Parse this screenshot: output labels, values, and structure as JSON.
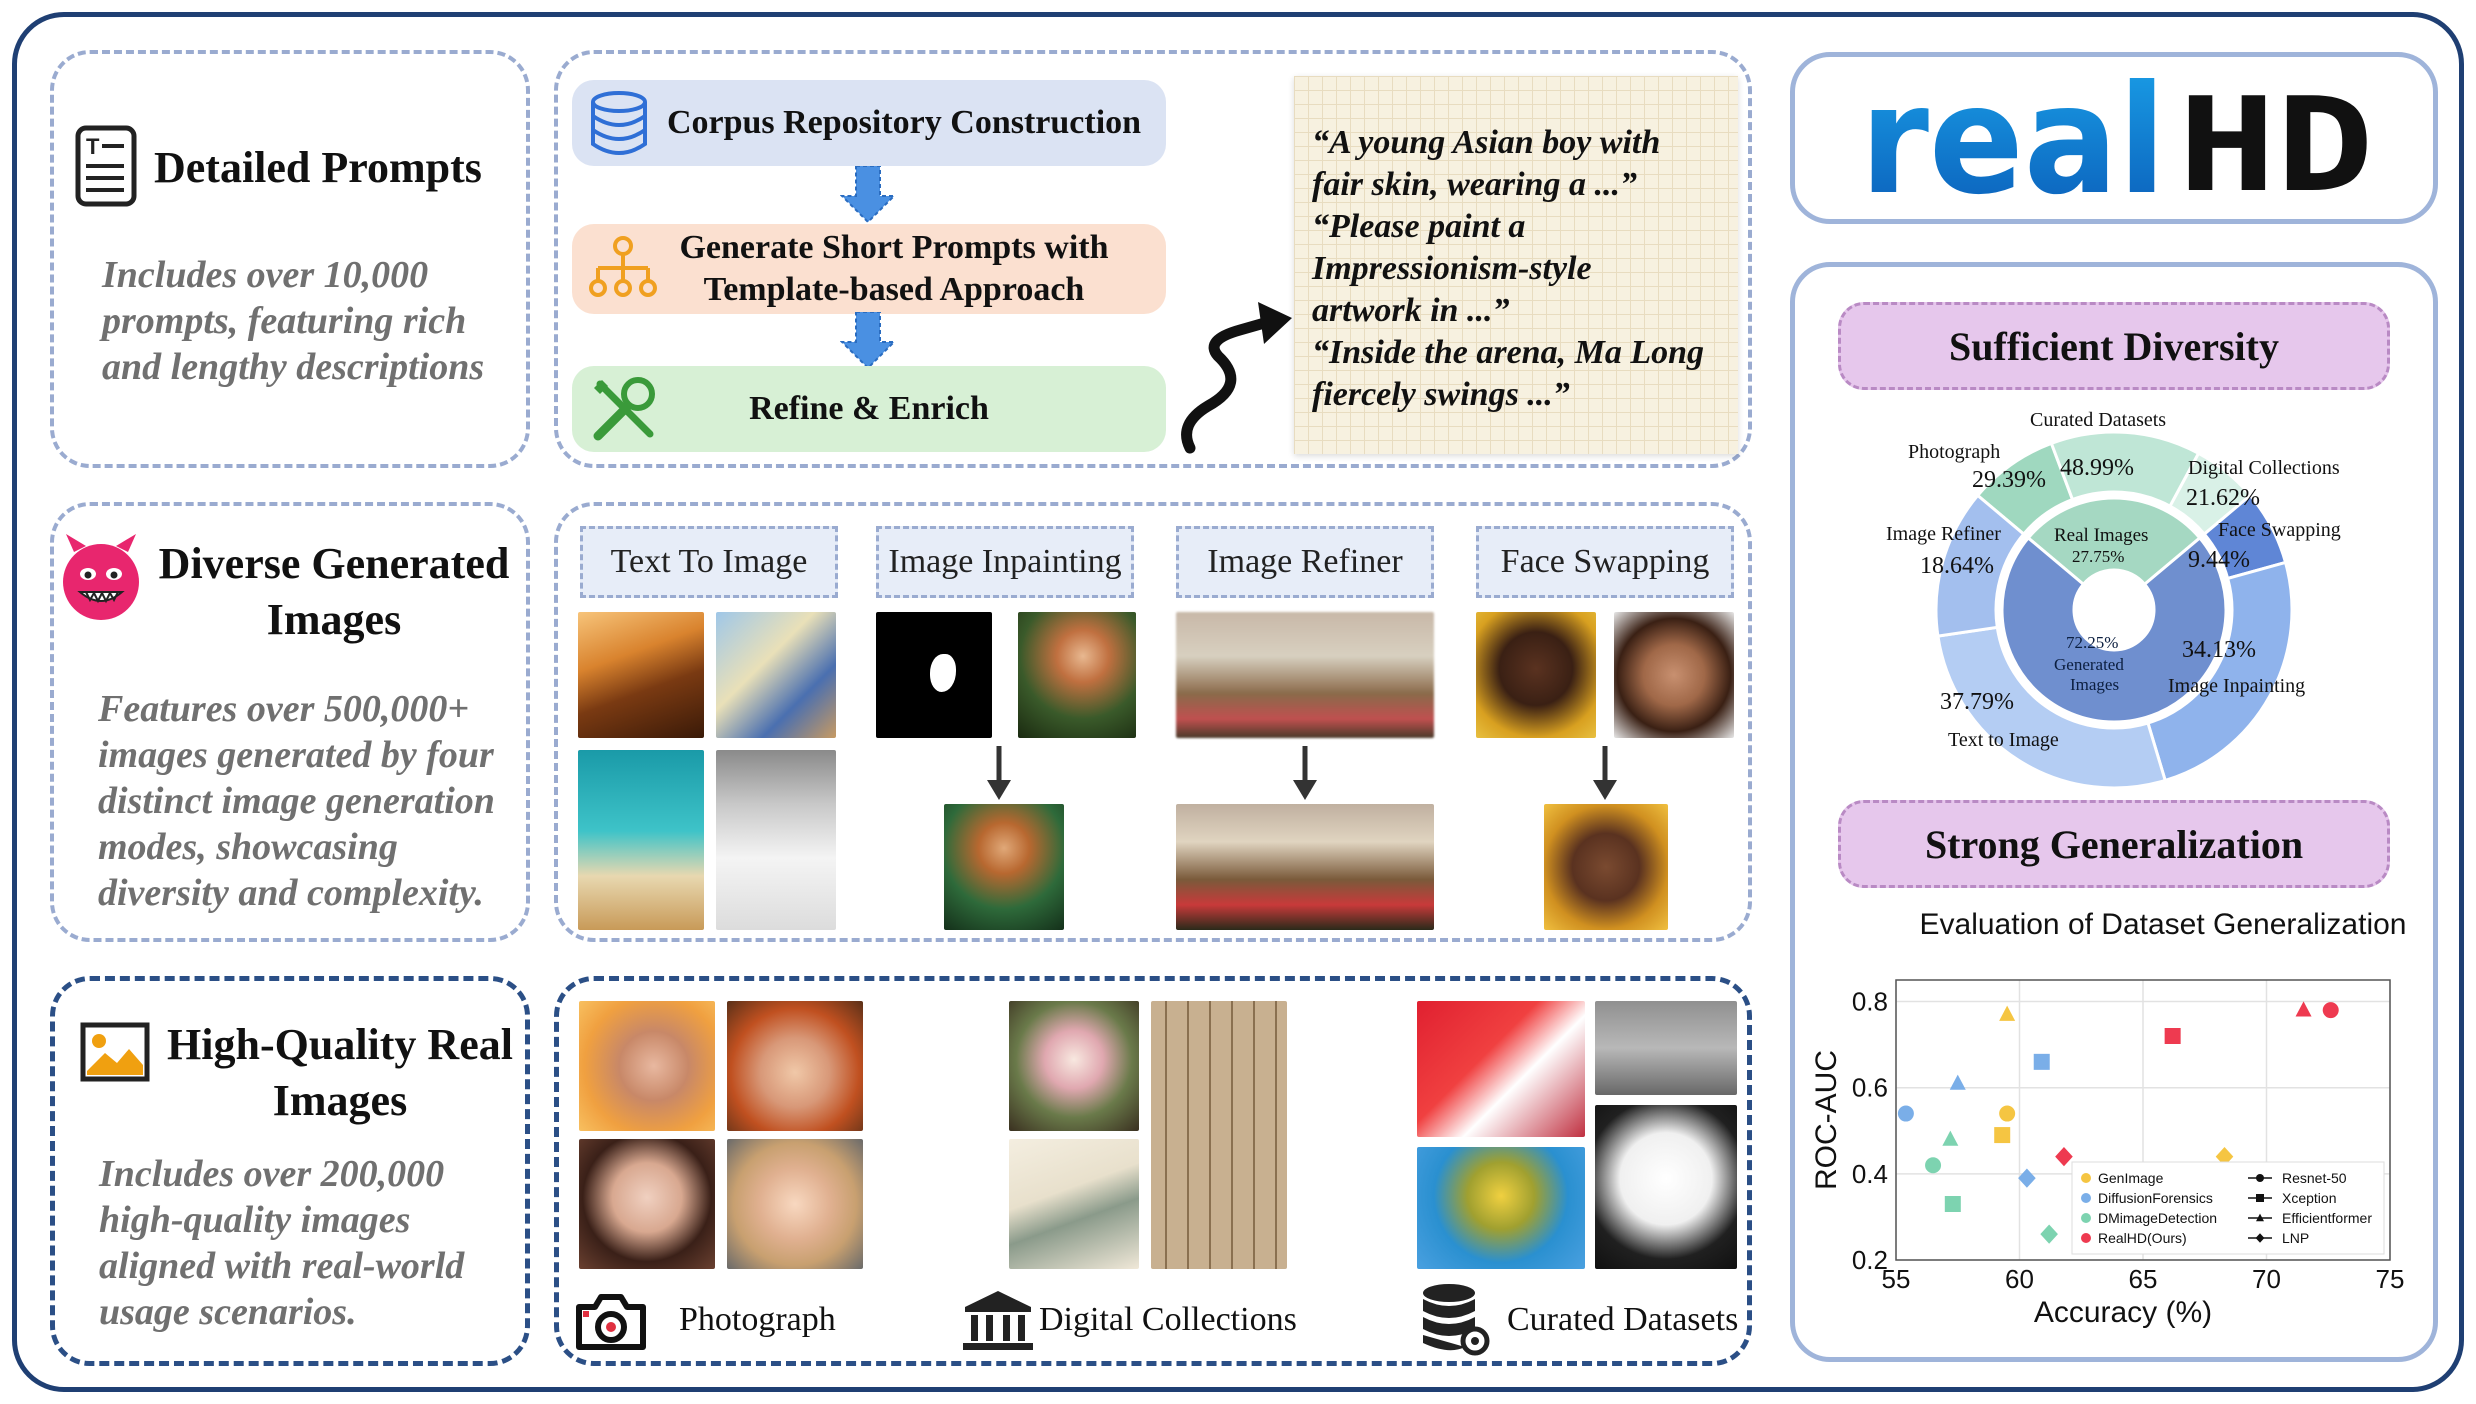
{
  "left": {
    "prompts": {
      "title": "Detailed Prompts",
      "desc": [
        "Includes over 10,000",
        "prompts, featuring rich",
        "and lengthy descriptions"
      ]
    },
    "images": {
      "title": [
        "Diverse Generated",
        "Images"
      ],
      "desc": [
        "Features over 500,000+",
        "images generated by four",
        "distinct image generation",
        "modes, showcasing",
        "diversity and complexity."
      ]
    },
    "real": {
      "title": [
        "High-Quality Real",
        "Images"
      ],
      "desc": [
        "Includes over 200,000",
        "high-quality images",
        "aligned with real-world",
        "usage scenarios."
      ]
    }
  },
  "flow": {
    "step1": "Corpus Repository Construction",
    "step2": [
      "Generate Short Prompts with",
      "Template-based Approach"
    ],
    "step3": "Refine & Enrich",
    "quotes": [
      "“A young Asian boy with",
      "fair skin, wearing a ...”",
      "“Please paint a",
      "Impressionism-style",
      "artwork in ...”",
      "“Inside the arena, Ma Long",
      "fiercely swings ...”"
    ]
  },
  "modes": [
    "Text To Image",
    "Image Inpainting",
    "Image Refiner",
    "Face Swapping"
  ],
  "sources": [
    "Photograph",
    "Digital Collections",
    "Curated Datasets"
  ],
  "logo": {
    "part1": "real",
    "part2": "HD"
  },
  "diversity": {
    "title": "Sufficient Diversity",
    "inner": [
      {
        "label": "Real Images",
        "value": "27.75%"
      },
      {
        "label": "Generated",
        "label2": "Images",
        "value": "72.25%"
      }
    ],
    "outer": [
      {
        "label": "Curated Datasets",
        "value": "48.99%"
      },
      {
        "label": "Digital Collections",
        "value": "21.62%"
      },
      {
        "label": "Photograph",
        "value": "29.39%"
      },
      {
        "label": "Face Swapping",
        "value": "9.44%"
      },
      {
        "label": "Image Inpainting",
        "value": "34.13%"
      },
      {
        "label": "Text to Image",
        "value": "37.79%"
      },
      {
        "label": "Image Refiner",
        "value": "18.64%"
      }
    ]
  },
  "generalization": {
    "title": "Strong Generalization"
  },
  "chart_data": {
    "type": "scatter",
    "title": "Evaluation of Dataset Generalization",
    "xlabel": "Accuracy (%)",
    "ylabel": "ROC-AUC",
    "xlim": [
      55,
      75
    ],
    "ylim": [
      0.2,
      0.85
    ],
    "xticks": [
      "55",
      "60",
      "65",
      "70",
      "75"
    ],
    "yticks": [
      "0.2",
      "0.4",
      "0.6",
      "0.8"
    ],
    "grid": true,
    "legend_placement": "lower-right",
    "datasets": [
      {
        "name": "GenImage",
        "color": "#f5c542"
      },
      {
        "name": "DiffusionForensics",
        "color": "#7aaee8"
      },
      {
        "name": "DMimageDetection",
        "color": "#7dd3b0"
      },
      {
        "name": "RealHD(Ours)",
        "color": "#ee3a50"
      }
    ],
    "models": [
      {
        "name": "Resnet-50",
        "marker": "circle"
      },
      {
        "name": "Xception",
        "marker": "square"
      },
      {
        "name": "Efficientformer",
        "marker": "triangle"
      },
      {
        "name": "LNP",
        "marker": "diamond"
      }
    ],
    "points": [
      {
        "dataset": "GenImage",
        "model": "Efficientformer",
        "x": 59.5,
        "y": 0.77
      },
      {
        "dataset": "GenImage",
        "model": "Resnet-50",
        "x": 59.5,
        "y": 0.54
      },
      {
        "dataset": "GenImage",
        "model": "Xception",
        "x": 59.3,
        "y": 0.49
      },
      {
        "dataset": "GenImage",
        "model": "LNP",
        "x": 68.3,
        "y": 0.44
      },
      {
        "dataset": "DiffusionForensics",
        "model": "Xception",
        "x": 60.9,
        "y": 0.66
      },
      {
        "dataset": "DiffusionForensics",
        "model": "Efficientformer",
        "x": 57.5,
        "y": 0.61
      },
      {
        "dataset": "DiffusionForensics",
        "model": "Resnet-50",
        "x": 55.4,
        "y": 0.54
      },
      {
        "dataset": "DiffusionForensics",
        "model": "LNP",
        "x": 60.3,
        "y": 0.39
      },
      {
        "dataset": "DMimageDetection",
        "model": "Efficientformer",
        "x": 57.2,
        "y": 0.48
      },
      {
        "dataset": "DMimageDetection",
        "model": "Resnet-50",
        "x": 56.5,
        "y": 0.42
      },
      {
        "dataset": "DMimageDetection",
        "model": "Xception",
        "x": 57.3,
        "y": 0.33
      },
      {
        "dataset": "DMimageDetection",
        "model": "LNP",
        "x": 61.2,
        "y": 0.26
      },
      {
        "dataset": "RealHD(Ours)",
        "model": "Xception",
        "x": 66.2,
        "y": 0.72
      },
      {
        "dataset": "RealHD(Ours)",
        "model": "Efficientformer",
        "x": 71.5,
        "y": 0.78
      },
      {
        "dataset": "RealHD(Ours)",
        "model": "Resnet-50",
        "x": 72.6,
        "y": 0.78
      },
      {
        "dataset": "RealHD(Ours)",
        "model": "LNP",
        "x": 61.8,
        "y": 0.44
      }
    ]
  },
  "colors": {
    "frame": "#1f3f73",
    "accent": "#2f6fd6",
    "pill": "#e6c7ec"
  }
}
